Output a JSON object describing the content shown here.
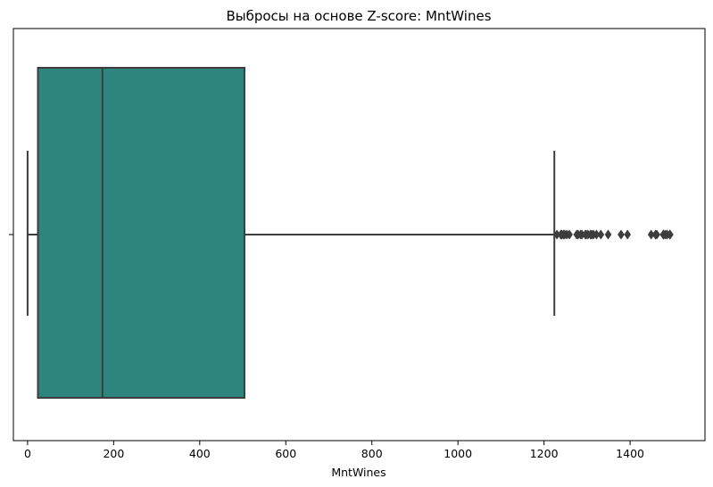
{
  "chart_data": {
    "type": "box",
    "title": "Выбросы на основе Z-score: MntWines",
    "xlabel": "MntWines",
    "ylabel": "",
    "xlim": [
      -33,
      1574
    ],
    "x_ticks": [
      0,
      200,
      400,
      600,
      800,
      1000,
      1200,
      1400
    ],
    "grid": false,
    "orientation": "horizontal",
    "box": {
      "whisker_low": 0,
      "q1": 24,
      "median": 174,
      "q3": 504,
      "whisker_high": 1224
    },
    "outliers": [
      1230,
      1239,
      1241,
      1245,
      1248,
      1253,
      1259,
      1276,
      1279,
      1285,
      1288,
      1296,
      1298,
      1302,
      1308,
      1311,
      1315,
      1322,
      1332,
      1349,
      1379,
      1394,
      1449,
      1459,
      1462,
      1477,
      1478,
      1482,
      1486,
      1492,
      1493
    ],
    "colors": {
      "box_fill": "#2e857e",
      "lines": "#3d3d3d",
      "spine": "#000000"
    }
  }
}
